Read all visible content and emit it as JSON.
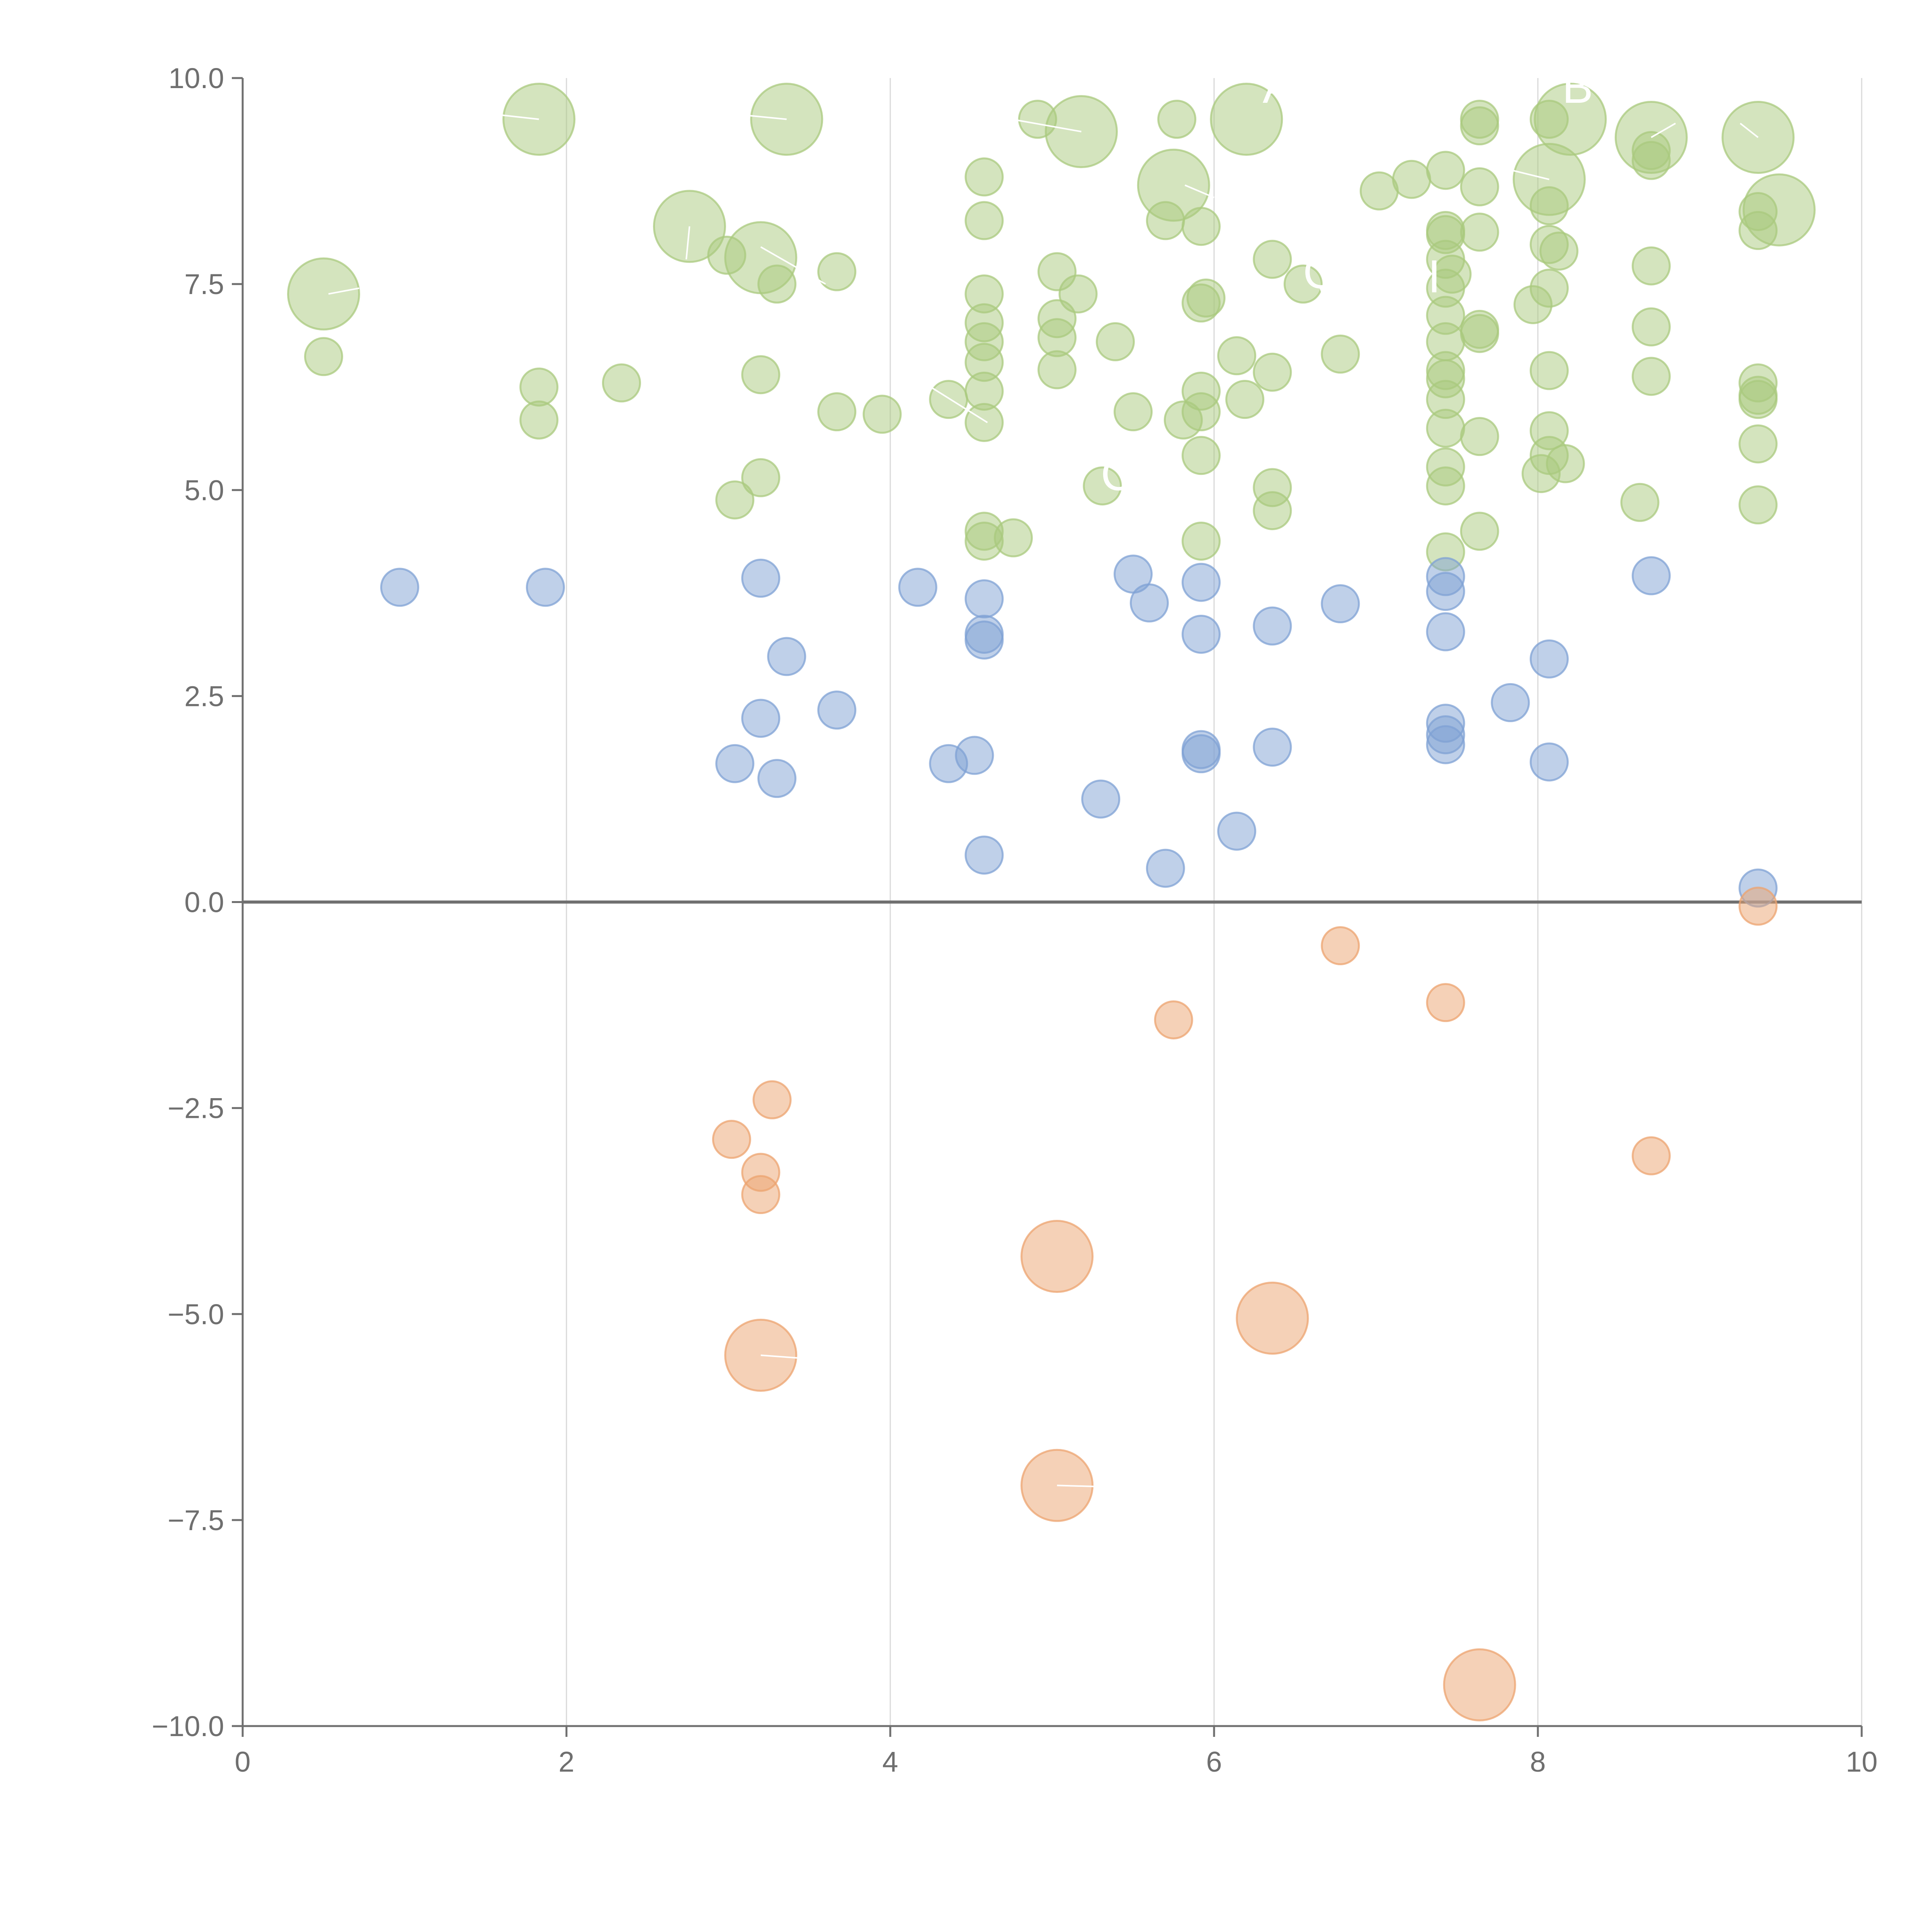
{
  "chart_data": {
    "type": "scatter",
    "title": "",
    "xlabel": "",
    "ylabel": "",
    "xlim": [
      0,
      10
    ],
    "ylim": [
      -10,
      10
    ],
    "x_ticks": [
      0,
      2,
      4,
      6,
      8,
      10
    ],
    "y_ticks": [
      10,
      7.5,
      5,
      2.5,
      0,
      -2.5,
      -5,
      -7.5,
      -10
    ],
    "x_tick_labels": [
      "0",
      "2",
      "4",
      "6",
      "8",
      "10"
    ],
    "y_tick_labels": [
      "10.0",
      "7.5",
      "5.0",
      "2.5",
      "0.0",
      "−2.5",
      "−5.0",
      "−7.5",
      "−10.0"
    ],
    "grid": "vertical lines at x ticks",
    "zero_line": true,
    "legend": "none",
    "colors": {
      "high": "#a9c97e",
      "mid": "#7fa1d4",
      "low": "#eca36f",
      "axis": "#6f6f6f",
      "grid": "#d9d9d9",
      "zero": "#6f6f6f"
    },
    "bubble_sizes": {
      "small": 1,
      "large": 3
    },
    "series": [
      {
        "color_key": "high",
        "points": [
          {
            "x": 0.5,
            "y": 7.38,
            "s": 3
          },
          {
            "x": 0.5,
            "y": 6.62,
            "s": 1
          },
          {
            "x": 1.83,
            "y": 9.5,
            "s": 3
          },
          {
            "x": 1.83,
            "y": 6.25,
            "s": 1
          },
          {
            "x": 1.83,
            "y": 5.85,
            "s": 1
          },
          {
            "x": 2.34,
            "y": 6.3,
            "s": 1
          },
          {
            "x": 2.76,
            "y": 8.2,
            "s": 3
          },
          {
            "x": 2.99,
            "y": 7.85,
            "s": 1
          },
          {
            "x": 3.04,
            "y": 4.88,
            "s": 1
          },
          {
            "x": 3.2,
            "y": 7.82,
            "s": 3
          },
          {
            "x": 3.2,
            "y": 6.4,
            "s": 1
          },
          {
            "x": 3.2,
            "y": 5.15,
            "s": 1
          },
          {
            "x": 3.3,
            "y": 7.5,
            "s": 1
          },
          {
            "x": 3.36,
            "y": 9.5,
            "s": 3
          },
          {
            "x": 3.67,
            "y": 7.65,
            "s": 1
          },
          {
            "x": 3.67,
            "y": 5.95,
            "s": 1
          },
          {
            "x": 3.95,
            "y": 5.92,
            "s": 1
          },
          {
            "x": 4.36,
            "y": 6.1,
            "s": 1
          },
          {
            "x": 4.58,
            "y": 8.8,
            "s": 1
          },
          {
            "x": 4.58,
            "y": 8.27,
            "s": 1
          },
          {
            "x": 4.58,
            "y": 7.38,
            "s": 1
          },
          {
            "x": 4.58,
            "y": 7.03,
            "s": 1
          },
          {
            "x": 4.58,
            "y": 6.8,
            "s": 1
          },
          {
            "x": 4.58,
            "y": 6.55,
            "s": 1
          },
          {
            "x": 4.58,
            "y": 6.2,
            "s": 1
          },
          {
            "x": 4.58,
            "y": 5.82,
            "s": 1
          },
          {
            "x": 4.58,
            "y": 4.5,
            "s": 1
          },
          {
            "x": 4.58,
            "y": 4.38,
            "s": 1
          },
          {
            "x": 4.76,
            "y": 4.42,
            "s": 1
          },
          {
            "x": 4.91,
            "y": 9.5,
            "s": 1
          },
          {
            "x": 5.03,
            "y": 7.65,
            "s": 1
          },
          {
            "x": 5.03,
            "y": 7.08,
            "s": 1
          },
          {
            "x": 5.03,
            "y": 6.85,
            "s": 1
          },
          {
            "x": 5.03,
            "y": 6.46,
            "s": 1
          },
          {
            "x": 5.18,
            "y": 9.35,
            "s": 3
          },
          {
            "x": 5.16,
            "y": 7.38,
            "s": 1
          },
          {
            "x": 5.31,
            "y": 5.05,
            "s": 1
          },
          {
            "x": 5.39,
            "y": 6.8,
            "s": 1
          },
          {
            "x": 5.5,
            "y": 5.95,
            "s": 1
          },
          {
            "x": 5.7,
            "y": 8.27,
            "s": 1
          },
          {
            "x": 5.75,
            "y": 8.7,
            "s": 3
          },
          {
            "x": 5.77,
            "y": 9.5,
            "s": 1
          },
          {
            "x": 5.81,
            "y": 5.85,
            "s": 1
          },
          {
            "x": 5.92,
            "y": 8.2,
            "s": 1
          },
          {
            "x": 5.92,
            "y": 7.27,
            "s": 1
          },
          {
            "x": 5.95,
            "y": 7.33,
            "s": 1
          },
          {
            "x": 5.92,
            "y": 6.2,
            "s": 1
          },
          {
            "x": 5.92,
            "y": 5.95,
            "s": 1
          },
          {
            "x": 5.92,
            "y": 5.42,
            "s": 1
          },
          {
            "x": 5.92,
            "y": 4.38,
            "s": 1
          },
          {
            "x": 6.2,
            "y": 9.5,
            "s": 3
          },
          {
            "x": 6.14,
            "y": 6.63,
            "s": 1
          },
          {
            "x": 6.19,
            "y": 6.1,
            "s": 1
          },
          {
            "x": 6.36,
            "y": 7.8,
            "s": 1
          },
          {
            "x": 6.36,
            "y": 6.43,
            "s": 1
          },
          {
            "x": 6.36,
            "y": 5.03,
            "s": 1
          },
          {
            "x": 6.36,
            "y": 4.75,
            "s": 1
          },
          {
            "x": 6.55,
            "y": 7.5,
            "s": 1
          },
          {
            "x": 6.78,
            "y": 6.65,
            "s": 1
          },
          {
            "x": 7.02,
            "y": 8.63,
            "s": 1
          },
          {
            "x": 7.22,
            "y": 8.77,
            "s": 1
          },
          {
            "x": 7.43,
            "y": 8.88,
            "s": 1
          },
          {
            "x": 7.43,
            "y": 8.15,
            "s": 1
          },
          {
            "x": 7.43,
            "y": 8.1,
            "s": 1
          },
          {
            "x": 7.43,
            "y": 7.8,
            "s": 1
          },
          {
            "x": 7.43,
            "y": 7.45,
            "s": 1
          },
          {
            "x": 7.47,
            "y": 7.62,
            "s": 1
          },
          {
            "x": 7.43,
            "y": 7.12,
            "s": 1
          },
          {
            "x": 7.43,
            "y": 6.8,
            "s": 1
          },
          {
            "x": 7.43,
            "y": 6.45,
            "s": 1
          },
          {
            "x": 7.43,
            "y": 6.35,
            "s": 1
          },
          {
            "x": 7.43,
            "y": 6.1,
            "s": 1
          },
          {
            "x": 7.43,
            "y": 5.75,
            "s": 1
          },
          {
            "x": 7.43,
            "y": 5.28,
            "s": 1
          },
          {
            "x": 7.43,
            "y": 5.05,
            "s": 1
          },
          {
            "x": 7.43,
            "y": 4.25,
            "s": 1
          },
          {
            "x": 7.64,
            "y": 9.5,
            "s": 1
          },
          {
            "x": 7.64,
            "y": 9.42,
            "s": 1
          },
          {
            "x": 7.64,
            "y": 8.68,
            "s": 1
          },
          {
            "x": 7.64,
            "y": 8.13,
            "s": 1
          },
          {
            "x": 7.64,
            "y": 6.95,
            "s": 1
          },
          {
            "x": 7.64,
            "y": 6.9,
            "s": 1
          },
          {
            "x": 7.64,
            "y": 5.65,
            "s": 1
          },
          {
            "x": 7.64,
            "y": 4.5,
            "s": 1
          },
          {
            "x": 7.97,
            "y": 7.25,
            "s": 1
          },
          {
            "x": 8.02,
            "y": 5.2,
            "s": 1
          },
          {
            "x": 8.07,
            "y": 9.5,
            "s": 1
          },
          {
            "x": 8.07,
            "y": 8.45,
            "s": 1
          },
          {
            "x": 8.07,
            "y": 7.98,
            "s": 1
          },
          {
            "x": 8.07,
            "y": 7.45,
            "s": 1
          },
          {
            "x": 8.07,
            "y": 6.45,
            "s": 1
          },
          {
            "x": 8.07,
            "y": 5.72,
            "s": 1
          },
          {
            "x": 8.07,
            "y": 5.42,
            "s": 1
          },
          {
            "x": 8.07,
            "y": 8.77,
            "s": 3
          },
          {
            "x": 8.13,
            "y": 7.9,
            "s": 1
          },
          {
            "x": 8.17,
            "y": 5.32,
            "s": 1
          },
          {
            "x": 8.2,
            "y": 9.5,
            "s": 3
          },
          {
            "x": 8.63,
            "y": 4.85,
            "s": 1
          },
          {
            "x": 8.7,
            "y": 9.28,
            "s": 3
          },
          {
            "x": 8.7,
            "y": 9.12,
            "s": 1
          },
          {
            "x": 8.7,
            "y": 9.0,
            "s": 1
          },
          {
            "x": 8.7,
            "y": 7.72,
            "s": 1
          },
          {
            "x": 8.7,
            "y": 6.98,
            "s": 1
          },
          {
            "x": 8.7,
            "y": 6.38,
            "s": 1
          },
          {
            "x": 9.36,
            "y": 9.28,
            "s": 3
          },
          {
            "x": 9.36,
            "y": 8.38,
            "s": 1
          },
          {
            "x": 9.36,
            "y": 8.15,
            "s": 1
          },
          {
            "x": 9.36,
            "y": 6.3,
            "s": 1
          },
          {
            "x": 9.36,
            "y": 6.15,
            "s": 1
          },
          {
            "x": 9.36,
            "y": 6.1,
            "s": 1
          },
          {
            "x": 9.36,
            "y": 5.56,
            "s": 1
          },
          {
            "x": 9.36,
            "y": 4.82,
            "s": 1
          },
          {
            "x": 9.49,
            "y": 8.4,
            "s": 3
          }
        ]
      },
      {
        "color_key": "mid",
        "points": [
          {
            "x": 0.97,
            "y": 3.82,
            "s": 1
          },
          {
            "x": 1.87,
            "y": 3.82,
            "s": 1
          },
          {
            "x": 3.04,
            "y": 1.68,
            "s": 1
          },
          {
            "x": 3.2,
            "y": 3.93,
            "s": 1
          },
          {
            "x": 3.2,
            "y": 2.23,
            "s": 1
          },
          {
            "x": 3.3,
            "y": 1.5,
            "s": 1
          },
          {
            "x": 3.36,
            "y": 2.98,
            "s": 1
          },
          {
            "x": 3.67,
            "y": 2.33,
            "s": 1
          },
          {
            "x": 4.17,
            "y": 3.82,
            "s": 1
          },
          {
            "x": 4.36,
            "y": 1.68,
            "s": 1
          },
          {
            "x": 4.52,
            "y": 1.78,
            "s": 1
          },
          {
            "x": 4.58,
            "y": 3.68,
            "s": 1
          },
          {
            "x": 4.58,
            "y": 3.25,
            "s": 1
          },
          {
            "x": 4.58,
            "y": 3.18,
            "s": 1
          },
          {
            "x": 4.58,
            "y": 0.57,
            "s": 1
          },
          {
            "x": 5.3,
            "y": 1.25,
            "s": 1
          },
          {
            "x": 5.5,
            "y": 3.98,
            "s": 1
          },
          {
            "x": 5.6,
            "y": 3.63,
            "s": 1
          },
          {
            "x": 5.7,
            "y": 0.41,
            "s": 1
          },
          {
            "x": 5.92,
            "y": 3.88,
            "s": 1
          },
          {
            "x": 5.92,
            "y": 3.25,
            "s": 1
          },
          {
            "x": 5.92,
            "y": 1.85,
            "s": 1
          },
          {
            "x": 5.92,
            "y": 1.8,
            "s": 1
          },
          {
            "x": 6.14,
            "y": 0.86,
            "s": 1
          },
          {
            "x": 6.36,
            "y": 3.35,
            "s": 1
          },
          {
            "x": 6.36,
            "y": 1.88,
            "s": 1
          },
          {
            "x": 6.78,
            "y": 3.62,
            "s": 1
          },
          {
            "x": 7.43,
            "y": 3.95,
            "s": 1
          },
          {
            "x": 7.43,
            "y": 3.77,
            "s": 1
          },
          {
            "x": 7.43,
            "y": 3.28,
            "s": 1
          },
          {
            "x": 7.43,
            "y": 2.17,
            "s": 1
          },
          {
            "x": 7.43,
            "y": 2.03,
            "s": 1
          },
          {
            "x": 7.43,
            "y": 1.91,
            "s": 1
          },
          {
            "x": 7.83,
            "y": 2.42,
            "s": 1
          },
          {
            "x": 8.07,
            "y": 2.95,
            "s": 1
          },
          {
            "x": 8.07,
            "y": 1.7,
            "s": 1
          },
          {
            "x": 8.7,
            "y": 3.96,
            "s": 1
          },
          {
            "x": 9.36,
            "y": 0.17,
            "s": 1
          }
        ]
      },
      {
        "color_key": "low",
        "points": [
          {
            "x": 3.02,
            "y": -2.88,
            "s": 1
          },
          {
            "x": 3.2,
            "y": -3.28,
            "s": 1
          },
          {
            "x": 3.2,
            "y": -3.55,
            "s": 1
          },
          {
            "x": 3.27,
            "y": -2.4,
            "s": 1
          },
          {
            "x": 3.2,
            "y": -5.5,
            "s": 3
          },
          {
            "x": 5.03,
            "y": -4.3,
            "s": 3
          },
          {
            "x": 5.03,
            "y": -7.08,
            "s": 3
          },
          {
            "x": 5.75,
            "y": -1.43,
            "s": 1
          },
          {
            "x": 6.36,
            "y": -5.05,
            "s": 3
          },
          {
            "x": 6.78,
            "y": -0.53,
            "s": 1
          },
          {
            "x": 7.43,
            "y": -1.22,
            "s": 1
          },
          {
            "x": 7.64,
            "y": -9.5,
            "s": 3
          },
          {
            "x": 8.7,
            "y": -3.08,
            "s": 1
          },
          {
            "x": 9.36,
            "y": -0.05,
            "s": 1
          }
        ]
      }
    ],
    "annotations": [
      {
        "text": "A",
        "x": 6.3,
        "y": 9.7
      },
      {
        "text": "B",
        "x": 8.15,
        "y": 9.7
      },
      {
        "text": "Q",
        "x": 6.55,
        "y": 7.45
      },
      {
        "text": "I",
        "x": 7.32,
        "y": 7.4
      },
      {
        "text": "C",
        "x": 5.3,
        "y": 5.0
      }
    ],
    "leader_lines": [
      {
        "x1": 0.53,
        "y1": 7.38,
        "x2": 0.72,
        "y2": 7.45
      },
      {
        "x1": 1.83,
        "y1": 9.5,
        "x2": 1.6,
        "y2": 9.55
      },
      {
        "x1": 2.76,
        "y1": 8.2,
        "x2": 2.74,
        "y2": 7.8
      },
      {
        "x1": 3.2,
        "y1": 7.95,
        "x2": 3.6,
        "y2": 7.5
      },
      {
        "x1": 3.36,
        "y1": 9.5,
        "x2": 3.1,
        "y2": 9.55
      },
      {
        "x1": 4.6,
        "y1": 5.82,
        "x2": 4.25,
        "y2": 6.25
      },
      {
        "x1": 5.18,
        "y1": 9.35,
        "x2": 4.75,
        "y2": 9.5
      },
      {
        "x1": 6.0,
        "y1": 8.55,
        "x2": 5.82,
        "y2": 8.7
      },
      {
        "x1": 8.07,
        "y1": 8.77,
        "x2": 7.8,
        "y2": 8.9
      },
      {
        "x1": 8.7,
        "y1": 9.28,
        "x2": 8.85,
        "y2": 9.45
      },
      {
        "x1": 9.36,
        "y1": 9.28,
        "x2": 9.25,
        "y2": 9.45
      },
      {
        "x1": 3.2,
        "y1": -5.5,
        "x2": 3.55,
        "y2": -5.55
      },
      {
        "x1": 5.03,
        "y1": -7.08,
        "x2": 5.4,
        "y2": -7.1
      }
    ]
  }
}
